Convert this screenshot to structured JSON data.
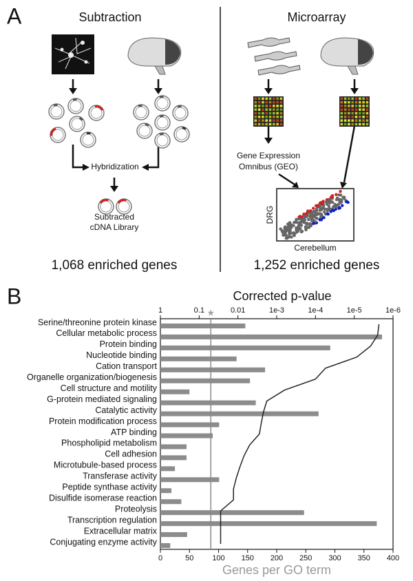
{
  "panel_a": {
    "label": "A",
    "subtraction": {
      "title": "Subtraction",
      "step": "Hybridization",
      "result_lines": [
        "Subtracted",
        "cDNA Library"
      ],
      "count": "1,068 enriched genes"
    },
    "microarray": {
      "title": "Microarray",
      "geo_lines": [
        "Gene Expression",
        "Omnibus (GEO)"
      ],
      "y_label": "DRG",
      "x_label": "Cerebellum",
      "count": "1,252 enriched genes"
    }
  },
  "panel_b": {
    "label": "B"
  },
  "chart_data": {
    "type": "bar",
    "orientation": "horizontal",
    "categories": [
      "Serine/threonine protein kinase",
      "Cellular metabolic process",
      "Protein binding",
      "Nucleotide binding",
      "Cation transport",
      "Organelle organization/biogenesis",
      "Cell structure and motility",
      "G-protein mediated signaling",
      "Catalytic activity",
      "Protein modification process",
      "ATP binding",
      "Phospholipid metabolism",
      "Cell adhesion",
      "Microtubule-based process",
      "Transferase activity",
      "Peptide synthase activity",
      "Disulfide isomerase reaction",
      "Proteolysis",
      "Transcription regulation",
      "Extracellular matrix",
      "Conjugating enzyme activity"
    ],
    "series": [
      {
        "color": "#8c8c8c",
        "values": [
          146,
          381,
          292,
          131,
          180,
          154,
          50,
          164,
          272,
          101,
          90,
          45,
          45,
          25,
          101,
          19,
          36,
          247,
          372,
          46,
          17
        ]
      },
      {
        "type": "line",
        "axis": "x2",
        "color": "#222222",
        "values": [
          2.3e-06,
          2.5e-06,
          3.8e-06,
          8.7e-06,
          5.5e-05,
          0.0001,
          0.00063,
          0.0018,
          0.0022,
          0.0025,
          0.0028,
          0.005,
          0.007,
          0.0089,
          0.011,
          0.013,
          0.013,
          0.028,
          0.028,
          0.028,
          0.028
        ]
      }
    ],
    "xlabel": "Genes per GO term",
    "xlim": [
      0,
      400
    ],
    "xticks": [
      0,
      50,
      100,
      150,
      200,
      250,
      300,
      350,
      400
    ],
    "x2label": "Corrected p-value",
    "x2scale": "log",
    "x2lim": [
      1,
      1e-06
    ],
    "x2ticks": [
      1,
      0.1,
      0.01,
      {
        "value": 0.001,
        "label": "1e-3"
      },
      {
        "value": 0.0001,
        "label": "1e-4"
      },
      {
        "value": 1e-05,
        "label": "1e-5"
      },
      {
        "value": 1e-06,
        "label": "1e-6"
      }
    ],
    "threshold": {
      "value": 0.05,
      "label": "*"
    }
  }
}
